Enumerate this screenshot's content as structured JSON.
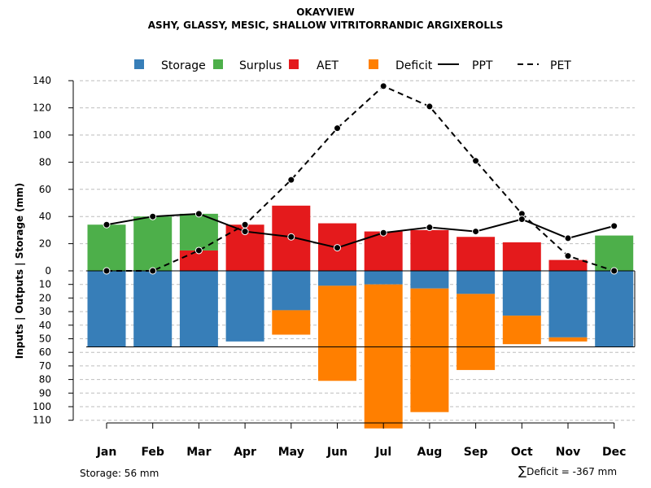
{
  "title": "OKAYVIEW",
  "subtitle": "ASHY, GLASSY, MESIC, SHALLOW VITRITORRANDIC ARGIXEROLLS",
  "footer": {
    "storage_label": "Storage: 56 mm",
    "deficit_symbol": "∑",
    "deficit_label": "Deficit = -367 mm"
  },
  "chart_data": {
    "type": "bar",
    "categories": [
      "Jan",
      "Feb",
      "Mar",
      "Apr",
      "May",
      "Jun",
      "Jul",
      "Aug",
      "Sep",
      "Oct",
      "Nov",
      "Dec"
    ],
    "ylabel": "Inputs | Outputs | Storage    (mm)",
    "ylim_top": [
      0,
      140
    ],
    "ylim_bottom": [
      0,
      110
    ],
    "yticks_top": [
      0,
      20,
      40,
      60,
      80,
      100,
      120,
      140
    ],
    "yticks_bottom": [
      10,
      20,
      30,
      40,
      50,
      60,
      70,
      80,
      90,
      100,
      110
    ],
    "storage_capacity": 56,
    "legend": [
      {
        "name": "Storage",
        "kind": "box",
        "color": "#377eb8"
      },
      {
        "name": "Surplus",
        "kind": "box",
        "color": "#4daf4a"
      },
      {
        "name": "AET",
        "kind": "box",
        "color": "#e41a1c"
      },
      {
        "name": "Deficit",
        "kind": "box",
        "color": "#ff7f00"
      },
      {
        "name": "PPT",
        "kind": "solid"
      },
      {
        "name": "PET",
        "kind": "dashed"
      }
    ],
    "series": [
      {
        "name": "AET",
        "values": [
          0,
          0,
          15,
          34,
          48,
          35,
          29,
          30,
          25,
          21,
          8,
          0
        ]
      },
      {
        "name": "Surplus",
        "values": [
          34,
          40,
          27,
          0,
          0,
          0,
          0,
          0,
          0,
          0,
          0,
          26
        ]
      },
      {
        "name": "Storage",
        "values": [
          56,
          56,
          56,
          52,
          29,
          11,
          10,
          13,
          17,
          33,
          49,
          56
        ]
      },
      {
        "name": "Deficit",
        "values": [
          0,
          0,
          0,
          0,
          18,
          70,
          106,
          91,
          56,
          21,
          3,
          0
        ]
      },
      {
        "name": "PPT",
        "values": [
          34,
          40,
          42,
          29,
          25,
          17,
          28,
          32,
          29,
          38,
          24,
          33
        ]
      },
      {
        "name": "PET",
        "values": [
          0,
          0,
          15,
          34,
          67,
          105,
          136,
          121,
          81,
          42,
          11,
          0
        ]
      }
    ],
    "colors": {
      "storage": "#377eb8",
      "surplus": "#4daf4a",
      "aet": "#e41a1c",
      "deficit": "#ff7f00",
      "grid": "#bebebe"
    }
  }
}
